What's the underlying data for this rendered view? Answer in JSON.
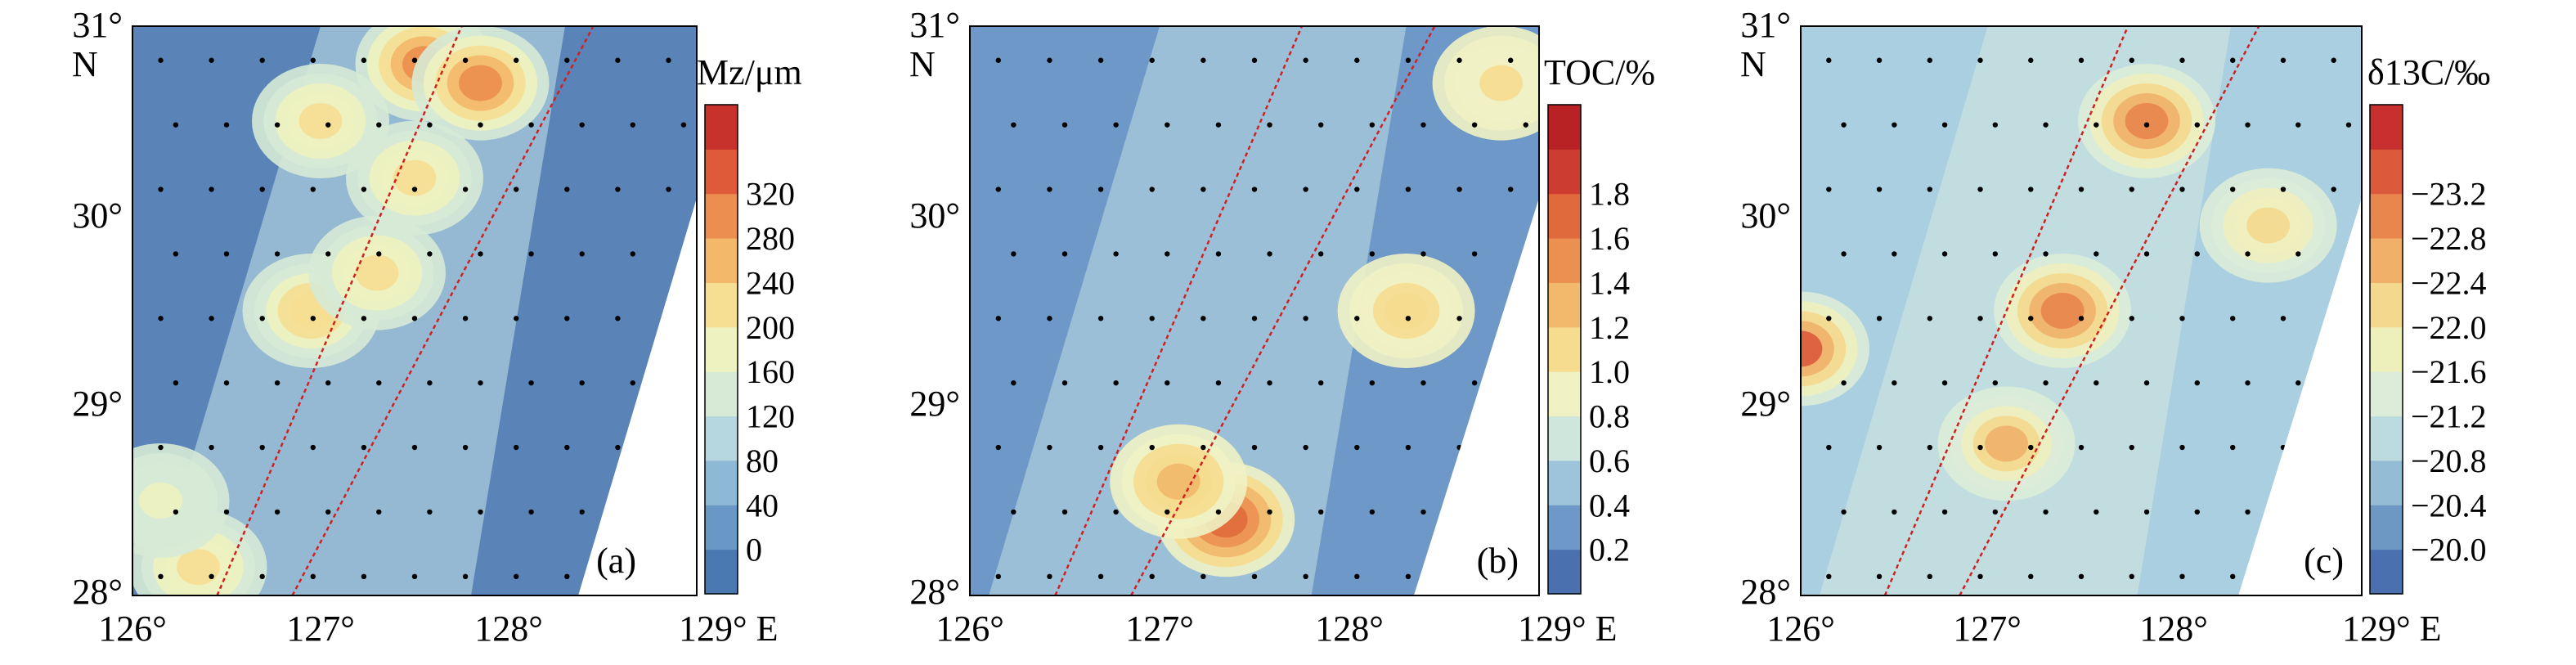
{
  "figure": {
    "xticks": [
      "126°",
      "127°",
      "128°",
      "129° E"
    ],
    "yticks": [
      "28°",
      "29°",
      "30°",
      "31°"
    ],
    "north_label": "N"
  },
  "chart_data": [
    {
      "type": "heatmap",
      "panel_label": "(a)",
      "colorbar_title": "Mz/μm",
      "colorbar_ticks": [
        "0",
        "40",
        "80",
        "120",
        "160",
        "200",
        "240",
        "280",
        "320"
      ],
      "colorbar_values": [
        0,
        40,
        80,
        120,
        160,
        200,
        240,
        280,
        320
      ],
      "colorbar_colors": [
        "#4a78b0",
        "#6a98c6",
        "#8db8d6",
        "#b6d6e0",
        "#d6ead6",
        "#eef2c0",
        "#f6de92",
        "#f3b86a",
        "#ec8e4f",
        "#de5a38",
        "#c8322c"
      ],
      "xlim": [
        126,
        129
      ],
      "ylim": [
        28,
        31
      ],
      "hotspots": [
        {
          "lon": 127.55,
          "lat": 30.8,
          "value": 290
        },
        {
          "lon": 127.85,
          "lat": 30.7,
          "value": 300
        },
        {
          "lon": 127.0,
          "lat": 30.5,
          "value": 200
        },
        {
          "lon": 127.5,
          "lat": 30.2,
          "value": 210
        },
        {
          "lon": 126.95,
          "lat": 29.5,
          "value": 230
        },
        {
          "lon": 127.3,
          "lat": 29.7,
          "value": 220
        },
        {
          "lon": 126.35,
          "lat": 28.15,
          "value": 220
        },
        {
          "lon": 126.15,
          "lat": 28.5,
          "value": 160
        }
      ]
    },
    {
      "type": "heatmap",
      "panel_label": "(b)",
      "colorbar_title": "TOC/%",
      "colorbar_ticks": [
        "0.2",
        "0.4",
        "0.6",
        "0.8",
        "1.0",
        "1.2",
        "1.4",
        "1.6",
        "1.8"
      ],
      "colorbar_values": [
        0.2,
        0.4,
        0.6,
        0.8,
        1.0,
        1.2,
        1.4,
        1.6,
        1.8
      ],
      "colorbar_colors": [
        "#4a70b0",
        "#6e98c8",
        "#9ec4dc",
        "#cfe6dc",
        "#f0f2c4",
        "#f6dc8e",
        "#f2b86c",
        "#ec9052",
        "#e06a3c",
        "#cc3c30",
        "#b82224"
      ],
      "xlim": [
        126,
        129
      ],
      "ylim": [
        28,
        31
      ],
      "hotspots": [
        {
          "lon": 127.35,
          "lat": 28.4,
          "value": 1.7
        },
        {
          "lon": 127.1,
          "lat": 28.6,
          "value": 1.2
        },
        {
          "lon": 128.3,
          "lat": 29.5,
          "value": 1.1
        },
        {
          "lon": 128.8,
          "lat": 30.7,
          "value": 1.0
        }
      ]
    },
    {
      "type": "heatmap",
      "panel_label": "(c)",
      "colorbar_title": "δ13C/‰",
      "colorbar_ticks": [
        "−20.0",
        "−20.4",
        "−20.8",
        "−21.2",
        "−21.6",
        "−22.0",
        "−22.4",
        "−22.8",
        "−23.2"
      ],
      "colorbar_values": [
        -20.0,
        -20.4,
        -20.8,
        -21.2,
        -21.6,
        -22.0,
        -22.4,
        -22.8,
        -23.2
      ],
      "colorbar_colors": [
        "#4a70b0",
        "#6e98c4",
        "#94bcd4",
        "#bcdbe0",
        "#dcecd8",
        "#eef0bc",
        "#f4d88e",
        "#f0b06a",
        "#e8864e",
        "#dc5a3c",
        "#c83030"
      ],
      "xlim": [
        126,
        129
      ],
      "ylim": [
        28,
        31
      ],
      "hotspots": [
        {
          "lon": 127.4,
          "lat": 29.5,
          "value": -23.0
        },
        {
          "lon": 127.85,
          "lat": 30.5,
          "value": -22.9
        },
        {
          "lon": 127.1,
          "lat": 28.8,
          "value": -22.6
        },
        {
          "lon": 126.0,
          "lat": 29.3,
          "value": -23.2
        },
        {
          "lon": 128.5,
          "lat": 29.95,
          "value": -22.2
        }
      ]
    }
  ]
}
